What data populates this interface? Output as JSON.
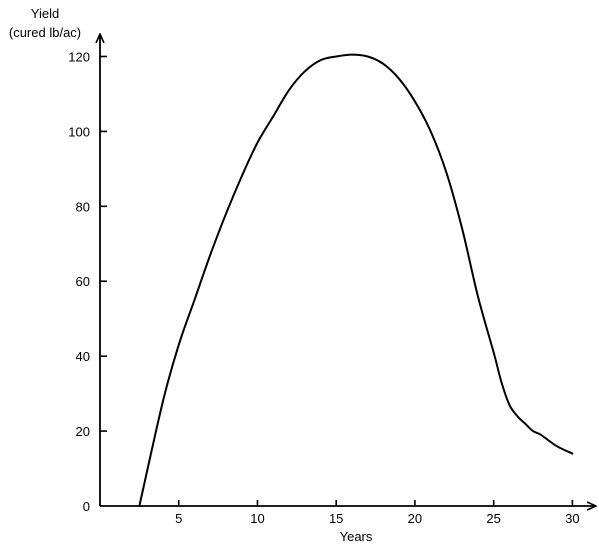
{
  "chart_data": {
    "type": "line",
    "title": "",
    "ylabel": [
      "Yield",
      "(cured lb/ac)"
    ],
    "xlabel": "Years",
    "xlim": [
      0,
      31.5
    ],
    "ylim": [
      0,
      126
    ],
    "x_ticks": [
      5,
      10,
      15,
      20,
      25,
      30
    ],
    "y_ticks": [
      0,
      20,
      40,
      60,
      80,
      100,
      120
    ],
    "grid": false,
    "legend": "none",
    "series": [
      {
        "x": [
          2.5,
          4,
          5,
          6,
          7,
          8,
          9,
          10,
          11,
          12,
          13,
          14,
          15,
          16,
          17,
          18,
          19,
          20,
          21,
          22,
          23,
          24,
          25,
          25.5,
          26,
          26.5,
          27,
          27.5,
          28,
          29,
          30
        ],
        "y": [
          0,
          28,
          43,
          55,
          67,
          78,
          88,
          97,
          104,
          111,
          116,
          119,
          120,
          120.5,
          120,
          118,
          114,
          108,
          100,
          89,
          74,
          56,
          41,
          33,
          27,
          24,
          22,
          20,
          19,
          16,
          14
        ],
        "color": "#000000"
      }
    ]
  }
}
